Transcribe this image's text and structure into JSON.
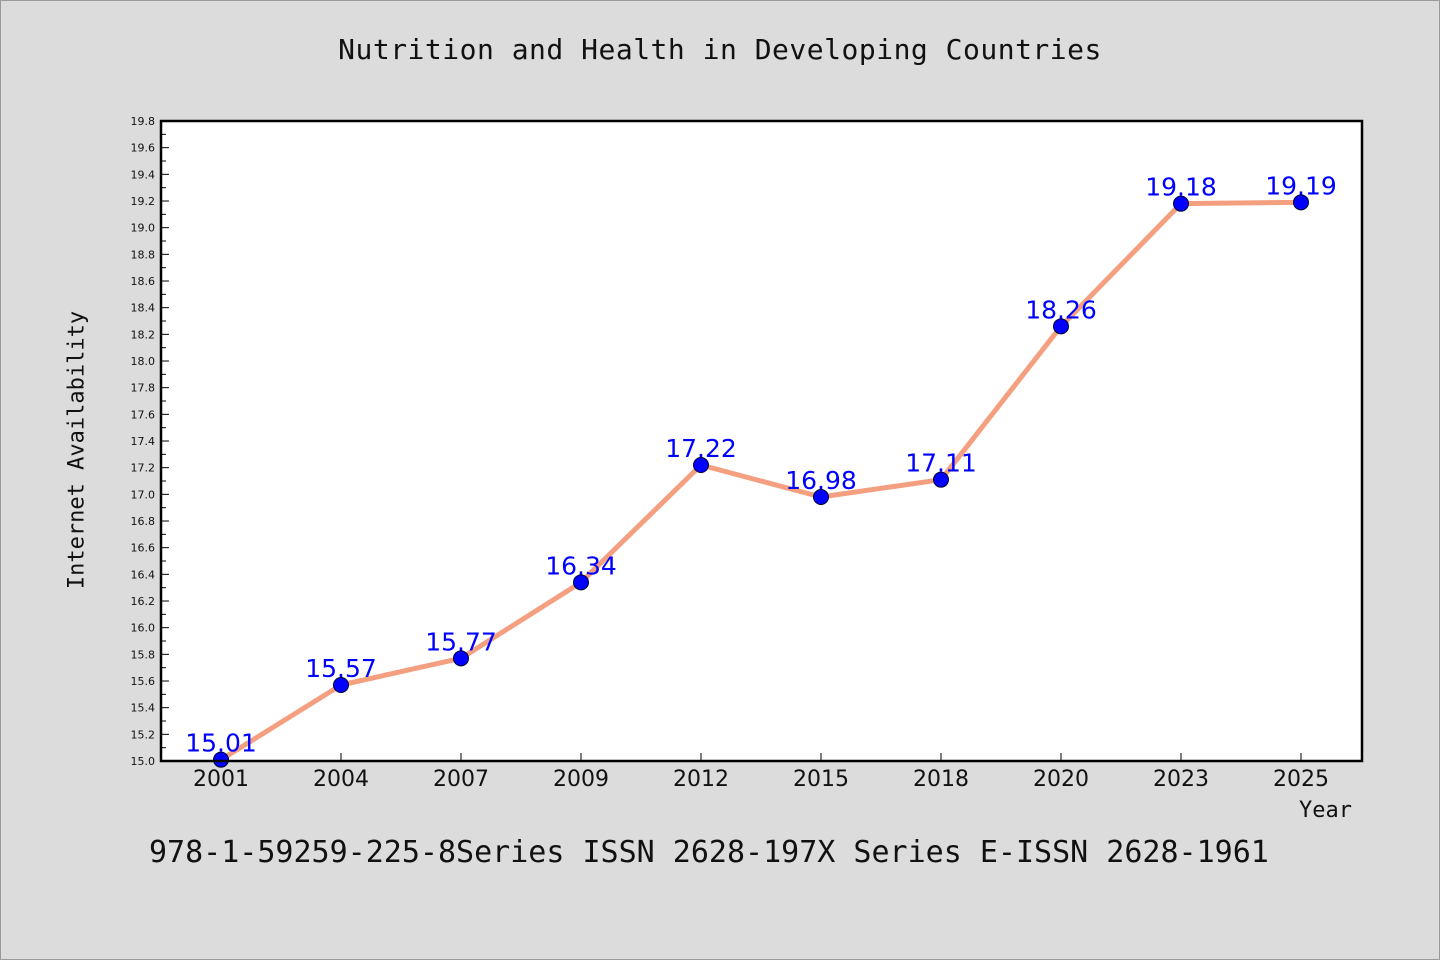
{
  "chart_data": {
    "type": "line",
    "title": "Nutrition and Health in Developing Countries",
    "xlabel": "Year",
    "ylabel": "Internet Availability",
    "categories": [
      "2001",
      "2004",
      "2007",
      "2009",
      "2012",
      "2015",
      "2018",
      "2020",
      "2023",
      "2025"
    ],
    "series": [
      {
        "values": [
          15.01,
          15.57,
          15.77,
          16.34,
          17.22,
          16.98,
          17.11,
          18.26,
          19.18,
          19.19
        ],
        "data_labels": [
          "15.01",
          "15.57",
          "15.77",
          "16.34",
          "17.22",
          "16.98",
          "17.11",
          "18.26",
          "19.18",
          "19.19"
        ]
      }
    ],
    "ylim": [
      15.0,
      19.8
    ],
    "yticks": [
      "15.0",
      "15.2",
      "15.4",
      "15.6",
      "15.8",
      "16.0",
      "16.2",
      "16.4",
      "16.6",
      "16.8",
      "17.0",
      "17.2",
      "17.4",
      "17.6",
      "17.8",
      "18.0",
      "18.2",
      "18.4",
      "18.6",
      "18.8",
      "19.0",
      "19.2",
      "19.4",
      "19.6",
      "19.8"
    ],
    "grid": false,
    "legend": "none",
    "colors": {
      "line": "#f4a080",
      "marker": "#0000ff",
      "data_label": "#0000ff",
      "plot_background": "#ffffff",
      "page_background": "#dcdcdc"
    }
  },
  "footer": "978-1-59259-225-8Series ISSN 2628-197X Series E-ISSN 2628-1961"
}
